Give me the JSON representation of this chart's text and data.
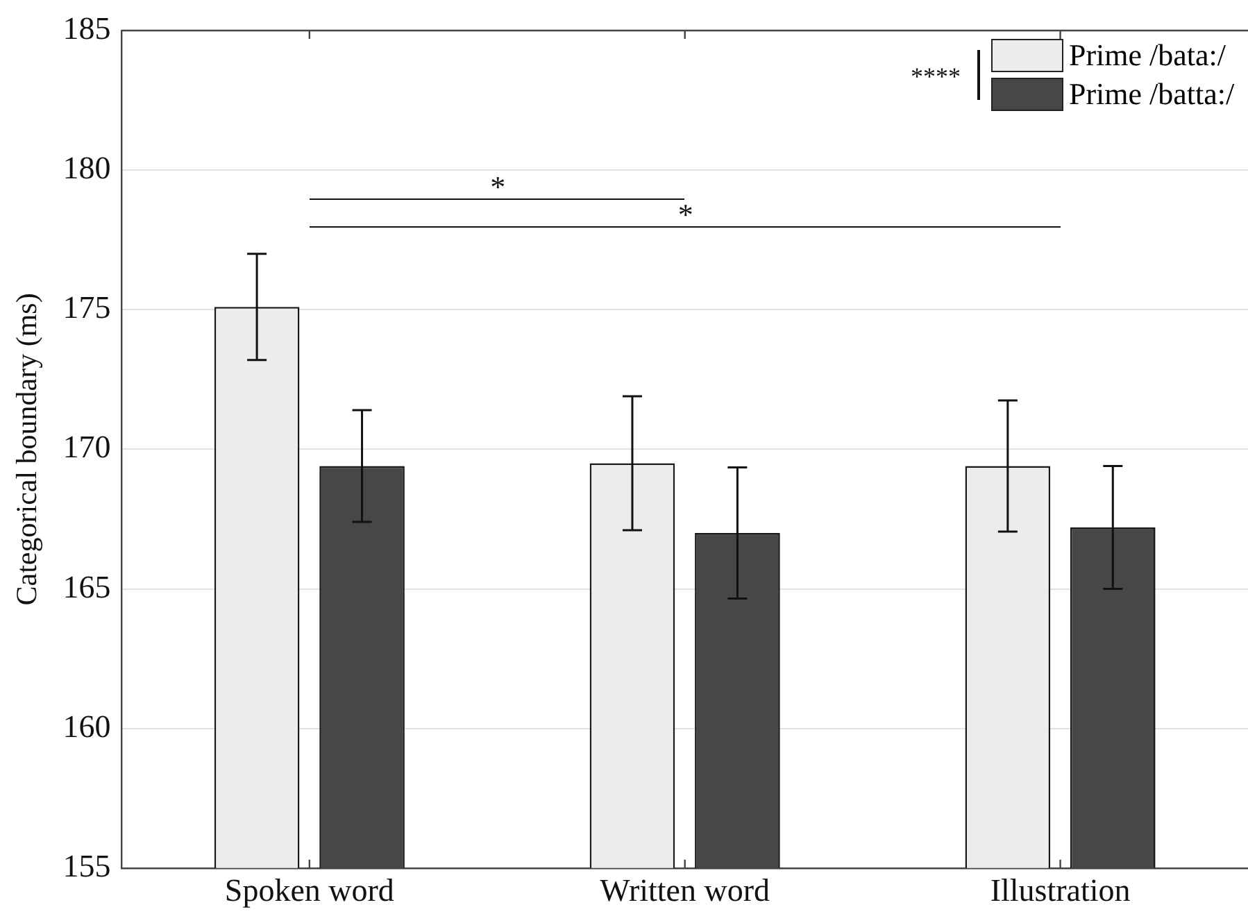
{
  "chart_data": {
    "type": "bar",
    "ylabel": "Categorical boundary (ms)",
    "categories": [
      "Spoken word",
      "Written word",
      "Illustration"
    ],
    "series": [
      {
        "name": "Prime /bata:/",
        "color": "#ececec",
        "values": [
          175.1,
          169.5,
          169.4
        ],
        "errors": [
          1.9,
          2.4,
          2.35
        ]
      },
      {
        "name": "Prime /batta:/",
        "color": "#474747",
        "values": [
          169.4,
          167.0,
          167.2
        ],
        "errors": [
          2.0,
          2.35,
          2.2
        ]
      }
    ],
    "ylim": [
      155,
      185
    ],
    "yticks": [
      155,
      160,
      165,
      170,
      175,
      180,
      185
    ],
    "grid": "y",
    "legend": "top right",
    "annotations": [
      "*",
      "*",
      "****"
    ]
  }
}
